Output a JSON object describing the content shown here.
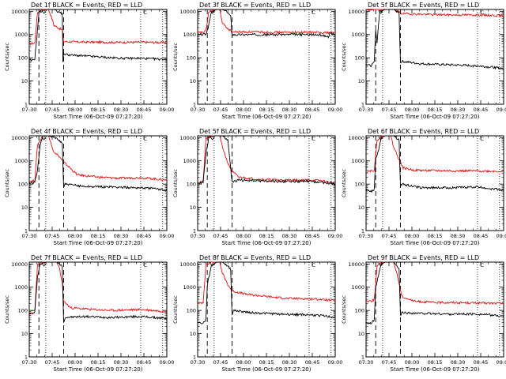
{
  "chart_data": {
    "type": "line",
    "shared": {
      "xlabel": "Start Time (06-Oct-09 07:27:20)",
      "ylabel": "Counts/sec",
      "xticks": [
        "07:30",
        "07:45",
        "08:00",
        "08:15",
        "08:30",
        "08:45",
        "09:00"
      ],
      "xlim": [
        0,
        100
      ],
      "yticks": [
        "1",
        "10",
        "100",
        "1000",
        "10000"
      ],
      "ylim": [
        1,
        12000
      ],
      "yscale": "log",
      "series_colors": {
        "events": "#000000",
        "lld": "#e01010"
      },
      "vlines_dashed": [
        7,
        25
      ],
      "vlines_dotted": [
        12,
        81,
        97
      ],
      "bracket_label": "C"
    },
    "panels": [
      {
        "title": "Det 1f BLACK = Events, RED = LLD",
        "events": [
          [
            0,
            80
          ],
          [
            2,
            75
          ],
          [
            4,
            90
          ],
          [
            6,
            1500
          ],
          [
            7,
            9000
          ],
          [
            10,
            11000
          ],
          [
            14,
            12000
          ],
          [
            18,
            12000
          ],
          [
            22,
            9000
          ],
          [
            24,
            8000
          ],
          [
            24.5,
            70
          ],
          [
            25,
            150
          ],
          [
            30,
            130
          ],
          [
            40,
            120
          ],
          [
            50,
            110
          ],
          [
            60,
            100
          ],
          [
            70,
            95
          ],
          [
            81,
            95
          ],
          [
            90,
            90
          ],
          [
            100,
            85
          ]
        ],
        "lld": [
          [
            0,
            400
          ],
          [
            4,
            420
          ],
          [
            6,
            9000
          ],
          [
            10,
            12000
          ],
          [
            14,
            12000
          ],
          [
            16,
            6000
          ],
          [
            18,
            2500
          ],
          [
            22,
            1800
          ],
          [
            24,
            1600
          ],
          [
            25,
            500
          ],
          [
            35,
            480
          ],
          [
            50,
            470
          ],
          [
            65,
            460
          ],
          [
            81,
            470
          ],
          [
            90,
            460
          ],
          [
            100,
            450
          ]
        ]
      },
      {
        "title": "Det 3f BLACK = Events, RED = LLD",
        "events": [
          [
            0,
            1000
          ],
          [
            3,
            1000
          ],
          [
            6,
            1050
          ],
          [
            7,
            1400
          ],
          [
            10,
            9000
          ],
          [
            14,
            12000
          ],
          [
            18,
            12000
          ],
          [
            22,
            9000
          ],
          [
            24,
            6000
          ],
          [
            25,
            1000
          ],
          [
            40,
            1000
          ],
          [
            60,
            1000
          ],
          [
            81,
            1000
          ],
          [
            90,
            950
          ],
          [
            95,
            800
          ],
          [
            96,
            1100
          ],
          [
            100,
            1000
          ]
        ],
        "lld": [
          [
            0,
            1200
          ],
          [
            4,
            1250
          ],
          [
            6,
            1400
          ],
          [
            8,
            9000
          ],
          [
            12,
            12000
          ],
          [
            16,
            12000
          ],
          [
            18,
            3000
          ],
          [
            22,
            1800
          ],
          [
            25,
            1300
          ],
          [
            40,
            1300
          ],
          [
            60,
            1250
          ],
          [
            81,
            1250
          ],
          [
            100,
            1200
          ]
        ]
      },
      {
        "title": "Det 5f BLACK = Events, RED = LLD",
        "events": [
          [
            0,
            50
          ],
          [
            4,
            45
          ],
          [
            6,
            80
          ],
          [
            7,
            1500
          ],
          [
            8,
            400
          ],
          [
            9,
            2500
          ],
          [
            10,
            10000
          ],
          [
            14,
            12000
          ],
          [
            20,
            12000
          ],
          [
            24,
            9000
          ],
          [
            25,
            60
          ],
          [
            26,
            70
          ],
          [
            40,
            55
          ],
          [
            60,
            50
          ],
          [
            81,
            45
          ],
          [
            90,
            40
          ],
          [
            100,
            35
          ]
        ],
        "lld": [
          [
            0,
            12000
          ],
          [
            2,
            11000
          ],
          [
            6,
            12000
          ],
          [
            10,
            12000
          ],
          [
            20,
            12000
          ],
          [
            25,
            9000
          ],
          [
            26,
            8000
          ],
          [
            40,
            7500
          ],
          [
            60,
            7000
          ],
          [
            81,
            7000
          ],
          [
            100,
            6500
          ]
        ]
      },
      {
        "title": "Det 4f BLACK = Events, RED = LLD",
        "events": [
          [
            0,
            110
          ],
          [
            4,
            120
          ],
          [
            6,
            400
          ],
          [
            8,
            5000
          ],
          [
            10,
            12000
          ],
          [
            14,
            12000
          ],
          [
            20,
            9000
          ],
          [
            24,
            6000
          ],
          [
            25,
            70
          ],
          [
            26,
            100
          ],
          [
            40,
            80
          ],
          [
            60,
            75
          ],
          [
            81,
            70
          ],
          [
            90,
            65
          ],
          [
            100,
            55
          ]
        ],
        "lld": [
          [
            0,
            130
          ],
          [
            4,
            140
          ],
          [
            6,
            5000
          ],
          [
            10,
            12000
          ],
          [
            14,
            12000
          ],
          [
            16,
            5000
          ],
          [
            18,
            2500
          ],
          [
            22,
            1500
          ],
          [
            25,
            900
          ],
          [
            35,
            250
          ],
          [
            50,
            200
          ],
          [
            65,
            180
          ],
          [
            81,
            190
          ],
          [
            90,
            170
          ],
          [
            100,
            150
          ]
        ]
      },
      {
        "title": "Det 5f BLACK = Events, RED = LLD",
        "events": [
          [
            0,
            110
          ],
          [
            4,
            120
          ],
          [
            6,
            2000
          ],
          [
            8,
            10000
          ],
          [
            12,
            12000
          ],
          [
            18,
            12000
          ],
          [
            22,
            8000
          ],
          [
            25,
            120
          ],
          [
            30,
            150
          ],
          [
            40,
            140
          ],
          [
            60,
            130
          ],
          [
            81,
            130
          ],
          [
            90,
            120
          ],
          [
            100,
            100
          ]
        ],
        "lld": [
          [
            0,
            120
          ],
          [
            4,
            130
          ],
          [
            6,
            9000
          ],
          [
            10,
            12000
          ],
          [
            16,
            12000
          ],
          [
            18,
            4000
          ],
          [
            22,
            800
          ],
          [
            25,
            350
          ],
          [
            30,
            200
          ],
          [
            45,
            160
          ],
          [
            60,
            150
          ],
          [
            81,
            150
          ],
          [
            90,
            140
          ],
          [
            100,
            110
          ]
        ]
      },
      {
        "title": "Det 6f BLACK = Events, RED = LLD",
        "events": [
          [
            0,
            55
          ],
          [
            4,
            50
          ],
          [
            6,
            60
          ],
          [
            7,
            1200
          ],
          [
            9,
            3000
          ],
          [
            11,
            10000
          ],
          [
            14,
            12000
          ],
          [
            20,
            12000
          ],
          [
            24,
            8000
          ],
          [
            25,
            80
          ],
          [
            26,
            100
          ],
          [
            40,
            70
          ],
          [
            60,
            70
          ],
          [
            81,
            75
          ],
          [
            90,
            65
          ],
          [
            100,
            55
          ]
        ],
        "lld": [
          [
            0,
            350
          ],
          [
            4,
            380
          ],
          [
            6,
            400
          ],
          [
            8,
            8000
          ],
          [
            12,
            12000
          ],
          [
            18,
            12000
          ],
          [
            20,
            4000
          ],
          [
            24,
            1200
          ],
          [
            27,
            500
          ],
          [
            35,
            400
          ],
          [
            50,
            380
          ],
          [
            65,
            370
          ],
          [
            81,
            370
          ],
          [
            100,
            350
          ]
        ]
      },
      {
        "title": "Det 7f BLACK = Events, RED = LLD",
        "events": [
          [
            0,
            70
          ],
          [
            4,
            80
          ],
          [
            6,
            3000
          ],
          [
            8,
            10000
          ],
          [
            12,
            12000
          ],
          [
            20,
            12000
          ],
          [
            24,
            8000
          ],
          [
            25,
            30
          ],
          [
            26,
            50
          ],
          [
            40,
            55
          ],
          [
            60,
            50
          ],
          [
            81,
            55
          ],
          [
            90,
            50
          ],
          [
            100,
            45
          ]
        ],
        "lld": [
          [
            0,
            90
          ],
          [
            4,
            100
          ],
          [
            6,
            9000
          ],
          [
            10,
            12000
          ],
          [
            20,
            12000
          ],
          [
            22,
            6000
          ],
          [
            24,
            1500
          ],
          [
            25,
            250
          ],
          [
            30,
            130
          ],
          [
            45,
            110
          ],
          [
            60,
            100
          ],
          [
            81,
            110
          ],
          [
            90,
            100
          ],
          [
            100,
            90
          ]
        ]
      },
      {
        "title": "Det 8f BLACK = Events, RED = LLD",
        "events": [
          [
            0,
            30
          ],
          [
            4,
            28
          ],
          [
            6,
            40
          ],
          [
            7,
            1200
          ],
          [
            10,
            9000
          ],
          [
            14,
            12000
          ],
          [
            18,
            12000
          ],
          [
            22,
            8000
          ],
          [
            24,
            6000
          ],
          [
            25,
            70
          ],
          [
            26,
            100
          ],
          [
            40,
            80
          ],
          [
            60,
            70
          ],
          [
            81,
            65
          ],
          [
            90,
            60
          ],
          [
            100,
            50
          ]
        ],
        "lld": [
          [
            0,
            200
          ],
          [
            4,
            220
          ],
          [
            6,
            9000
          ],
          [
            10,
            12000
          ],
          [
            16,
            12000
          ],
          [
            18,
            4000
          ],
          [
            22,
            1300
          ],
          [
            25,
            700
          ],
          [
            35,
            500
          ],
          [
            50,
            400
          ],
          [
            65,
            330
          ],
          [
            81,
            320
          ],
          [
            90,
            300
          ],
          [
            100,
            260
          ]
        ]
      },
      {
        "title": "Det 9f BLACK = Events, RED = LLD",
        "events": [
          [
            0,
            30
          ],
          [
            4,
            28
          ],
          [
            6,
            40
          ],
          [
            7,
            1000
          ],
          [
            9,
            3000
          ],
          [
            11,
            10000
          ],
          [
            14,
            12000
          ],
          [
            20,
            12000
          ],
          [
            24,
            6000
          ],
          [
            25,
            60
          ],
          [
            26,
            80
          ],
          [
            40,
            75
          ],
          [
            60,
            70
          ],
          [
            81,
            70
          ],
          [
            90,
            65
          ],
          [
            100,
            55
          ]
        ],
        "lld": [
          [
            0,
            250
          ],
          [
            4,
            260
          ],
          [
            6,
            300
          ],
          [
            8,
            8000
          ],
          [
            12,
            12000
          ],
          [
            20,
            12000
          ],
          [
            22,
            5000
          ],
          [
            24,
            1500
          ],
          [
            26,
            400
          ],
          [
            35,
            250
          ],
          [
            50,
            220
          ],
          [
            65,
            220
          ],
          [
            81,
            210
          ],
          [
            100,
            200
          ]
        ]
      }
    ]
  }
}
